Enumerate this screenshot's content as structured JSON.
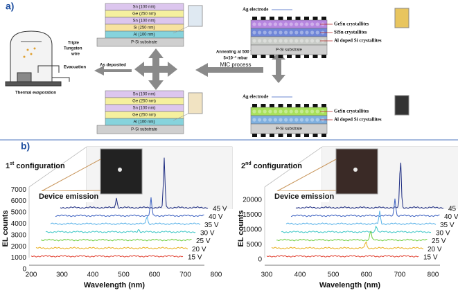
{
  "panel_a": {
    "label": "a)",
    "stack_top": {
      "layers": [
        "Sn (100 nm)",
        "Ge (250 nm)",
        "Sn (100 nm)",
        "Si (250 nm)",
        "Al (100 nm)",
        "P-Si substrate"
      ]
    },
    "stack_bottom": {
      "layers": [
        "Sn (100 nm)",
        "Ge (250 nm)",
        "Sn (100 nm)",
        "Ge (250 nm)",
        "Al (100 nm)",
        "P-Si substrate"
      ]
    },
    "evaporation": {
      "wire": [
        "Triple",
        "Tungsten",
        "wire"
      ],
      "evacuation": "Evacuation",
      "caption": "Thermal evaporation"
    },
    "as_deposited": "As deposited",
    "process": {
      "annealing": "Annealing at 500 °C",
      "pressure": "5×10⁻³ mbar",
      "name": "MIC process"
    },
    "device_top": {
      "electrode": "Ag electrode",
      "layers": [
        "GeSn crystallites",
        "SiSn crystallites",
        "Al doped Si crystallites"
      ],
      "substrate": "P-Si substrate"
    },
    "device_bottom": {
      "electrode": "Ag electrode",
      "layers": [
        "GeSn crystallites",
        "Al doped Si crystallites"
      ],
      "substrate": "P-Si substrate"
    }
  },
  "panel_b": {
    "label": "b)",
    "plots": [
      {
        "config_number": "1",
        "config_suffix": "st",
        "config_text": " configuration",
        "emission": "Device emission",
        "y_label": "EL counts",
        "x_label": "Wavelength (nm)",
        "y_ticks": [
          0,
          1000,
          2000,
          3000,
          4000,
          5000,
          6000,
          7000
        ],
        "x_ticks": [
          200,
          300,
          400,
          500,
          600,
          700,
          800
        ],
        "voltages": [
          "45 V",
          "40 V",
          "35 V",
          "30 V",
          "25 V",
          "20 V",
          "15 V"
        ]
      },
      {
        "config_number": "2",
        "config_suffix": "nd",
        "config_text": " configuration",
        "emission": "Device emission",
        "y_label": "EL counts",
        "x_label": "Wavelength (nm)",
        "y_ticks": [
          0,
          5000,
          10000,
          15000,
          20000
        ],
        "x_ticks": [
          300,
          400,
          500,
          600,
          700,
          800
        ],
        "voltages": [
          "45 V",
          "40 V",
          "35 V",
          "30 V",
          "25 V",
          "20 V",
          "15 V"
        ]
      }
    ]
  }
}
